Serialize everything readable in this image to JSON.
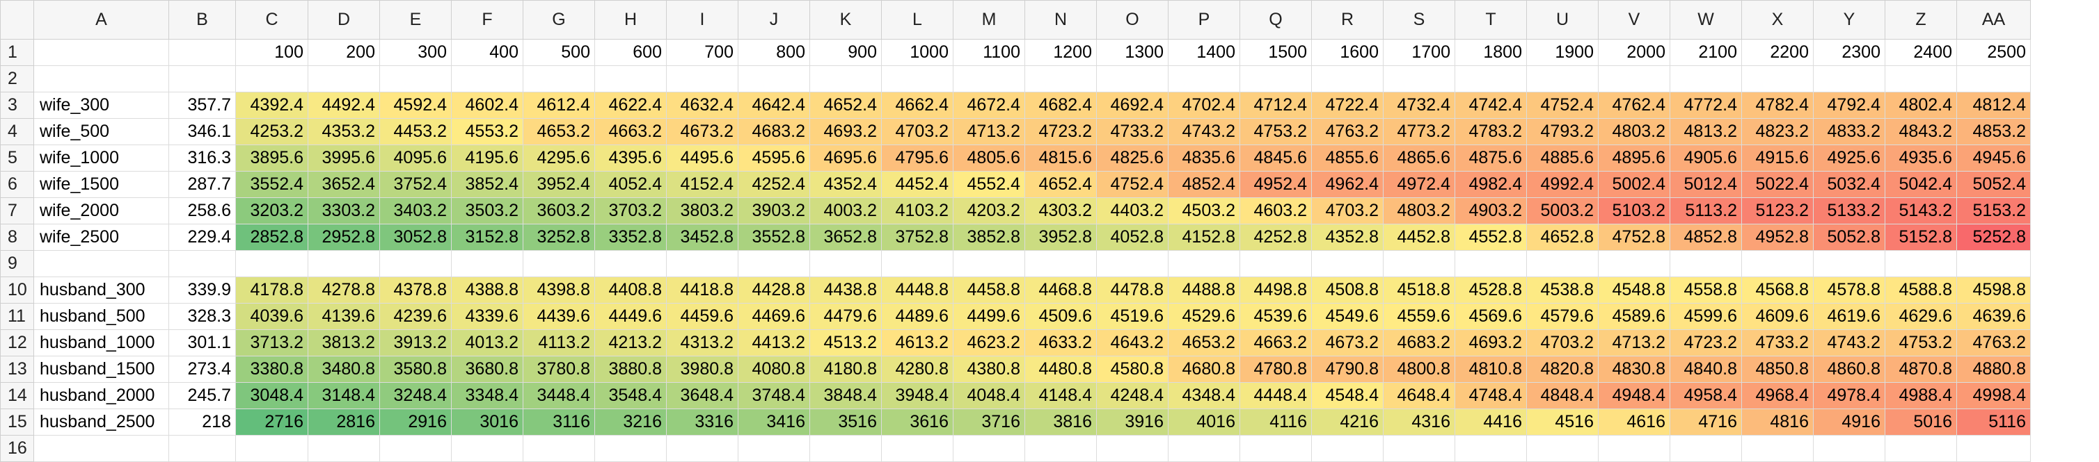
{
  "columns": [
    "A",
    "B",
    "C",
    "D",
    "E",
    "F",
    "G",
    "H",
    "I",
    "J",
    "K",
    "L",
    "M",
    "N",
    "O",
    "P",
    "Q",
    "R",
    "S",
    "T",
    "U",
    "V",
    "W",
    "X",
    "Y",
    "Z",
    "AA"
  ],
  "color_scale": {
    "min": "#63be7b",
    "mid": "#ffeb84",
    "max": "#f8696b"
  },
  "rows": [
    {
      "num": "1",
      "label": "",
      "base": "",
      "values": [
        "100",
        "200",
        "300",
        "400",
        "500",
        "600",
        "700",
        "800",
        "900",
        "1000",
        "1100",
        "1200",
        "1300",
        "1400",
        "1500",
        "1600",
        "1700",
        "1800",
        "1900",
        "2000",
        "2100",
        "2200",
        "2300",
        "2400",
        "2500"
      ],
      "scaled": false
    },
    {
      "num": "2",
      "label": "",
      "base": "",
      "values": [],
      "scaled": false
    },
    {
      "num": "3",
      "label": "wife_300",
      "base": "357.7",
      "values": [
        "4392.4",
        "4492.4",
        "4592.4",
        "4602.4",
        "4612.4",
        "4622.4",
        "4632.4",
        "4642.4",
        "4652.4",
        "4662.4",
        "4672.4",
        "4682.4",
        "4692.4",
        "4702.4",
        "4712.4",
        "4722.4",
        "4732.4",
        "4742.4",
        "4752.4",
        "4762.4",
        "4772.4",
        "4782.4",
        "4792.4",
        "4802.4",
        "4812.4"
      ],
      "scaled": true
    },
    {
      "num": "4",
      "label": "wife_500",
      "base": "346.1",
      "values": [
        "4253.2",
        "4353.2",
        "4453.2",
        "4553.2",
        "4653.2",
        "4663.2",
        "4673.2",
        "4683.2",
        "4693.2",
        "4703.2",
        "4713.2",
        "4723.2",
        "4733.2",
        "4743.2",
        "4753.2",
        "4763.2",
        "4773.2",
        "4783.2",
        "4793.2",
        "4803.2",
        "4813.2",
        "4823.2",
        "4833.2",
        "4843.2",
        "4853.2"
      ],
      "scaled": true
    },
    {
      "num": "5",
      "label": "wife_1000",
      "base": "316.3",
      "values": [
        "3895.6",
        "3995.6",
        "4095.6",
        "4195.6",
        "4295.6",
        "4395.6",
        "4495.6",
        "4595.6",
        "4695.6",
        "4795.6",
        "4805.6",
        "4815.6",
        "4825.6",
        "4835.6",
        "4845.6",
        "4855.6",
        "4865.6",
        "4875.6",
        "4885.6",
        "4895.6",
        "4905.6",
        "4915.6",
        "4925.6",
        "4935.6",
        "4945.6"
      ],
      "scaled": true
    },
    {
      "num": "6",
      "label": "wife_1500",
      "base": "287.7",
      "values": [
        "3552.4",
        "3652.4",
        "3752.4",
        "3852.4",
        "3952.4",
        "4052.4",
        "4152.4",
        "4252.4",
        "4352.4",
        "4452.4",
        "4552.4",
        "4652.4",
        "4752.4",
        "4852.4",
        "4952.4",
        "4962.4",
        "4972.4",
        "4982.4",
        "4992.4",
        "5002.4",
        "5012.4",
        "5022.4",
        "5032.4",
        "5042.4",
        "5052.4"
      ],
      "scaled": true
    },
    {
      "num": "7",
      "label": "wife_2000",
      "base": "258.6",
      "values": [
        "3203.2",
        "3303.2",
        "3403.2",
        "3503.2",
        "3603.2",
        "3703.2",
        "3803.2",
        "3903.2",
        "4003.2",
        "4103.2",
        "4203.2",
        "4303.2",
        "4403.2",
        "4503.2",
        "4603.2",
        "4703.2",
        "4803.2",
        "4903.2",
        "5003.2",
        "5103.2",
        "5113.2",
        "5123.2",
        "5133.2",
        "5143.2",
        "5153.2"
      ],
      "scaled": true
    },
    {
      "num": "8",
      "label": "wife_2500",
      "base": "229.4",
      "values": [
        "2852.8",
        "2952.8",
        "3052.8",
        "3152.8",
        "3252.8",
        "3352.8",
        "3452.8",
        "3552.8",
        "3652.8",
        "3752.8",
        "3852.8",
        "3952.8",
        "4052.8",
        "4152.8",
        "4252.8",
        "4352.8",
        "4452.8",
        "4552.8",
        "4652.8",
        "4752.8",
        "4852.8",
        "4952.8",
        "5052.8",
        "5152.8",
        "5252.8"
      ],
      "scaled": true
    },
    {
      "num": "9",
      "label": "",
      "base": "",
      "values": [],
      "scaled": false
    },
    {
      "num": "10",
      "label": "husband_300",
      "base": "339.9",
      "values": [
        "4178.8",
        "4278.8",
        "4378.8",
        "4388.8",
        "4398.8",
        "4408.8",
        "4418.8",
        "4428.8",
        "4438.8",
        "4448.8",
        "4458.8",
        "4468.8",
        "4478.8",
        "4488.8",
        "4498.8",
        "4508.8",
        "4518.8",
        "4528.8",
        "4538.8",
        "4548.8",
        "4558.8",
        "4568.8",
        "4578.8",
        "4588.8",
        "4598.8"
      ],
      "scaled": true
    },
    {
      "num": "11",
      "label": "husband_500",
      "base": "328.3",
      "values": [
        "4039.6",
        "4139.6",
        "4239.6",
        "4339.6",
        "4439.6",
        "4449.6",
        "4459.6",
        "4469.6",
        "4479.6",
        "4489.6",
        "4499.6",
        "4509.6",
        "4519.6",
        "4529.6",
        "4539.6",
        "4549.6",
        "4559.6",
        "4569.6",
        "4579.6",
        "4589.6",
        "4599.6",
        "4609.6",
        "4619.6",
        "4629.6",
        "4639.6"
      ],
      "scaled": true
    },
    {
      "num": "12",
      "label": "husband_1000",
      "base": "301.1",
      "values": [
        "3713.2",
        "3813.2",
        "3913.2",
        "4013.2",
        "4113.2",
        "4213.2",
        "4313.2",
        "4413.2",
        "4513.2",
        "4613.2",
        "4623.2",
        "4633.2",
        "4643.2",
        "4653.2",
        "4663.2",
        "4673.2",
        "4683.2",
        "4693.2",
        "4703.2",
        "4713.2",
        "4723.2",
        "4733.2",
        "4743.2",
        "4753.2",
        "4763.2"
      ],
      "scaled": true
    },
    {
      "num": "13",
      "label": "husband_1500",
      "base": "273.4",
      "values": [
        "3380.8",
        "3480.8",
        "3580.8",
        "3680.8",
        "3780.8",
        "3880.8",
        "3980.8",
        "4080.8",
        "4180.8",
        "4280.8",
        "4380.8",
        "4480.8",
        "4580.8",
        "4680.8",
        "4780.8",
        "4790.8",
        "4800.8",
        "4810.8",
        "4820.8",
        "4830.8",
        "4840.8",
        "4850.8",
        "4860.8",
        "4870.8",
        "4880.8"
      ],
      "scaled": true
    },
    {
      "num": "14",
      "label": "husband_2000",
      "base": "245.7",
      "values": [
        "3048.4",
        "3148.4",
        "3248.4",
        "3348.4",
        "3448.4",
        "3548.4",
        "3648.4",
        "3748.4",
        "3848.4",
        "3948.4",
        "4048.4",
        "4148.4",
        "4248.4",
        "4348.4",
        "4448.4",
        "4548.4",
        "4648.4",
        "4748.4",
        "4848.4",
        "4948.4",
        "4958.4",
        "4968.4",
        "4978.4",
        "4988.4",
        "4998.4"
      ],
      "scaled": true
    },
    {
      "num": "15",
      "label": "husband_2500",
      "base": "218",
      "values": [
        "2716",
        "2816",
        "2916",
        "3016",
        "3116",
        "3216",
        "3316",
        "3416",
        "3516",
        "3616",
        "3716",
        "3816",
        "3916",
        "4016",
        "4116",
        "4216",
        "4316",
        "4416",
        "4516",
        "4616",
        "4716",
        "4816",
        "4916",
        "5016",
        "5116"
      ],
      "scaled": true
    },
    {
      "num": "16",
      "label": "",
      "base": "",
      "values": [],
      "scaled": false
    }
  ]
}
